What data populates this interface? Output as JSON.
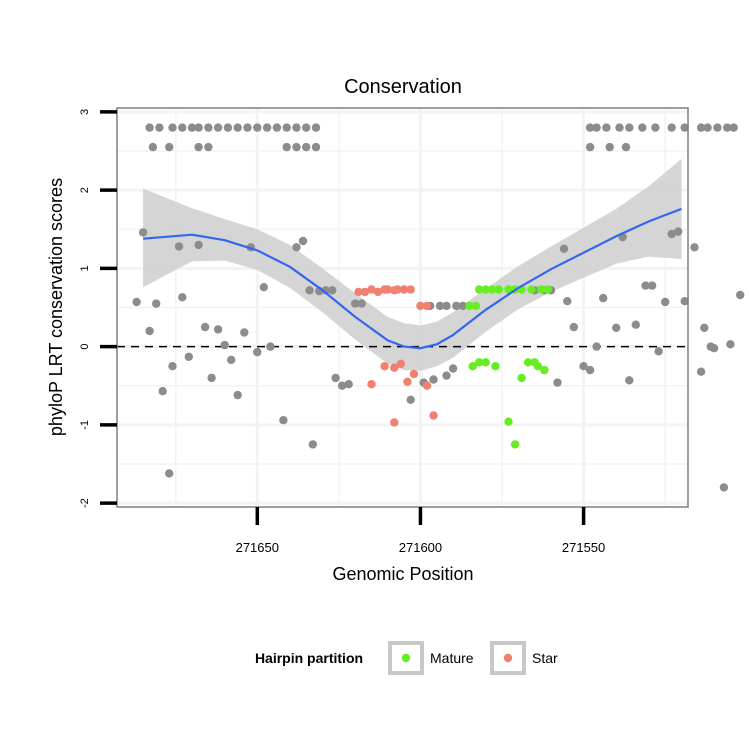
{
  "chart_data": {
    "type": "scatter",
    "title": "Conservation",
    "xlabel": "Genomic Position",
    "ylabel": "phyloP LRT conservation scores",
    "x_reversed": true,
    "xlim": [
      271693,
      271518
    ],
    "ylim": [
      -2.05,
      3.05
    ],
    "x_ticks": [
      271650,
      271600,
      271550
    ],
    "y_ticks": [
      -2,
      -1,
      0,
      1,
      2,
      3
    ],
    "hline": 0,
    "grid": true,
    "legend": {
      "title": "Hairpin partition",
      "position": "bottom",
      "entries": [
        {
          "label": "Mature",
          "color": "#66ee22"
        },
        {
          "label": "Star",
          "color": "#f08070"
        }
      ]
    },
    "colors": {
      "other": "#8c8c8c",
      "mature": "#66ee22",
      "star": "#f08070",
      "smooth_line": "#3366ee",
      "ribbon": "#d0d0d0",
      "panel_border": "#7f7f7f",
      "grid": "#f3f3f3"
    },
    "smooth_line": {
      "x": [
        271685,
        271670,
        271660,
        271650,
        271640,
        271630,
        271620,
        271610,
        271605,
        271600,
        271595,
        271590,
        271580,
        271570,
        271560,
        271550,
        271540,
        271530,
        271520
      ],
      "y": [
        1.38,
        1.43,
        1.36,
        1.23,
        1.02,
        0.72,
        0.38,
        0.08,
        0.0,
        -0.02,
        0.03,
        0.15,
        0.47,
        0.75,
        0.99,
        1.2,
        1.41,
        1.6,
        1.76
      ]
    },
    "ribbon": {
      "x": [
        271685,
        271670,
        271660,
        271650,
        271640,
        271630,
        271620,
        271610,
        271605,
        271600,
        271595,
        271590,
        271580,
        271570,
        271560,
        271550,
        271540,
        271530,
        271520
      ],
      "upper": [
        2.02,
        1.77,
        1.63,
        1.5,
        1.3,
        1.0,
        0.68,
        0.38,
        0.3,
        0.27,
        0.32,
        0.44,
        0.74,
        1.03,
        1.28,
        1.52,
        1.76,
        2.05,
        2.4
      ],
      "lower": [
        0.76,
        1.09,
        1.1,
        0.98,
        0.75,
        0.44,
        0.09,
        -0.22,
        -0.3,
        -0.31,
        -0.25,
        -0.14,
        0.19,
        0.48,
        0.7,
        0.88,
        1.06,
        1.15,
        1.12
      ]
    },
    "series": [
      {
        "name": "other",
        "points": [
          [
            271683,
            2.8
          ],
          [
            271680,
            2.8
          ],
          [
            271676,
            2.8
          ],
          [
            271673,
            2.8
          ],
          [
            271670,
            2.8
          ],
          [
            271668,
            2.8
          ],
          [
            271665,
            2.8
          ],
          [
            271662,
            2.8
          ],
          [
            271659,
            2.8
          ],
          [
            271656,
            2.8
          ],
          [
            271653,
            2.8
          ],
          [
            271650,
            2.8
          ],
          [
            271647,
            2.8
          ],
          [
            271644,
            2.8
          ],
          [
            271641,
            2.8
          ],
          [
            271638,
            2.8
          ],
          [
            271635,
            2.8
          ],
          [
            271632,
            2.8
          ],
          [
            271682,
            2.55
          ],
          [
            271677,
            2.55
          ],
          [
            271668,
            2.55
          ],
          [
            271665,
            2.55
          ],
          [
            271641,
            2.55
          ],
          [
            271638,
            2.55
          ],
          [
            271635,
            2.55
          ],
          [
            271632,
            2.55
          ],
          [
            271687,
            0.57
          ],
          [
            271685,
            1.46
          ],
          [
            271683,
            0.2
          ],
          [
            271681,
            0.55
          ],
          [
            271679,
            -0.57
          ],
          [
            271677,
            -1.62
          ],
          [
            271676,
            -0.25
          ],
          [
            271674,
            1.28
          ],
          [
            271673,
            0.63
          ],
          [
            271671,
            -0.13
          ],
          [
            271668,
            1.3
          ],
          [
            271666,
            0.25
          ],
          [
            271664,
            -0.4
          ],
          [
            271662,
            0.22
          ],
          [
            271660,
            0.02
          ],
          [
            271658,
            -0.17
          ],
          [
            271656,
            -0.62
          ],
          [
            271654,
            0.18
          ],
          [
            271652,
            1.27
          ],
          [
            271650,
            -0.07
          ],
          [
            271648,
            0.76
          ],
          [
            271646,
            0.0
          ],
          [
            271642,
            -0.94
          ],
          [
            271638,
            1.27
          ],
          [
            271636,
            1.35
          ],
          [
            271634,
            0.72
          ],
          [
            271633,
            -1.25
          ],
          [
            271631,
            0.71
          ],
          [
            271629,
            0.72
          ],
          [
            271627,
            0.72
          ],
          [
            271626,
            -0.4
          ],
          [
            271624,
            -0.5
          ],
          [
            271622,
            -0.48
          ],
          [
            271620,
            0.55
          ],
          [
            271618,
            0.55
          ],
          [
            271597,
            0.52
          ],
          [
            271594,
            0.52
          ],
          [
            271592,
            0.52
          ],
          [
            271589,
            0.52
          ],
          [
            271587,
            0.52
          ],
          [
            271603,
            -0.68
          ],
          [
            271599,
            -0.46
          ],
          [
            271596,
            -0.42
          ],
          [
            271592,
            -0.37
          ],
          [
            271590,
            -0.28
          ],
          [
            271565,
            0.72
          ],
          [
            271562,
            0.72
          ],
          [
            271560,
            0.72
          ],
          [
            271558,
            -0.46
          ],
          [
            271556,
            1.25
          ],
          [
            271555,
            0.58
          ],
          [
            271553,
            0.25
          ],
          [
            271550,
            -0.25
          ],
          [
            271548,
            -0.3
          ],
          [
            271546,
            0.0
          ],
          [
            271544,
            0.62
          ],
          [
            271540,
            0.24
          ],
          [
            271538,
            1.4
          ],
          [
            271536,
            -0.43
          ],
          [
            271534,
            0.28
          ],
          [
            271531,
            0.78
          ],
          [
            271529,
            0.78
          ],
          [
            271527,
            -0.06
          ],
          [
            271525,
            0.57
          ],
          [
            271523,
            1.44
          ],
          [
            271521,
            1.47
          ],
          [
            271519,
            0.58
          ],
          [
            271516,
            1.27
          ],
          [
            271514,
            -0.32
          ],
          [
            271513,
            0.24
          ],
          [
            271511,
            0.0
          ],
          [
            271510,
            -0.02
          ],
          [
            271507,
            -1.8
          ],
          [
            271505,
            0.03
          ],
          [
            271502,
            0.66
          ],
          [
            271548,
            2.8
          ],
          [
            271546,
            2.8
          ],
          [
            271543,
            2.8
          ],
          [
            271539,
            2.8
          ],
          [
            271536,
            2.8
          ],
          [
            271532,
            2.8
          ],
          [
            271528,
            2.8
          ],
          [
            271523,
            2.8
          ],
          [
            271519,
            2.8
          ],
          [
            271514,
            2.8
          ],
          [
            271512,
            2.8
          ],
          [
            271509,
            2.8
          ],
          [
            271506,
            2.8
          ],
          [
            271504,
            2.8
          ],
          [
            271548,
            2.55
          ],
          [
            271542,
            2.55
          ],
          [
            271537,
            2.55
          ]
        ]
      },
      {
        "name": "Mature",
        "points": [
          [
            271585,
            0.52
          ],
          [
            271583,
            0.52
          ],
          [
            271582,
            0.73
          ],
          [
            271580,
            0.73
          ],
          [
            271578,
            0.73
          ],
          [
            271576,
            0.73
          ],
          [
            271573,
            0.73
          ],
          [
            271571,
            0.73
          ],
          [
            271569,
            0.73
          ],
          [
            271566,
            0.73
          ],
          [
            271563,
            0.73
          ],
          [
            271561,
            0.73
          ],
          [
            271584,
            -0.25
          ],
          [
            271582,
            -0.2
          ],
          [
            271580,
            -0.2
          ],
          [
            271577,
            -0.25
          ],
          [
            271573,
            -0.96
          ],
          [
            271571,
            -1.25
          ],
          [
            271569,
            -0.4
          ],
          [
            271567,
            -0.2
          ],
          [
            271565,
            -0.2
          ],
          [
            271564,
            -0.25
          ],
          [
            271562,
            -0.3
          ]
        ]
      },
      {
        "name": "Star",
        "points": [
          [
            271619,
            0.7
          ],
          [
            271617,
            0.7
          ],
          [
            271615,
            0.73
          ],
          [
            271613,
            0.7
          ],
          [
            271611,
            0.73
          ],
          [
            271610,
            0.73
          ],
          [
            271608,
            0.72
          ],
          [
            271607,
            0.73
          ],
          [
            271605,
            0.73
          ],
          [
            271603,
            0.73
          ],
          [
            271600,
            0.52
          ],
          [
            271598,
            0.52
          ],
          [
            271615,
            -0.48
          ],
          [
            271611,
            -0.25
          ],
          [
            271608,
            -0.27
          ],
          [
            271606,
            -0.22
          ],
          [
            271604,
            -0.45
          ],
          [
            271602,
            -0.35
          ],
          [
            271608,
            -0.97
          ],
          [
            271598,
            -0.5
          ],
          [
            271596,
            -0.88
          ]
        ]
      }
    ]
  }
}
